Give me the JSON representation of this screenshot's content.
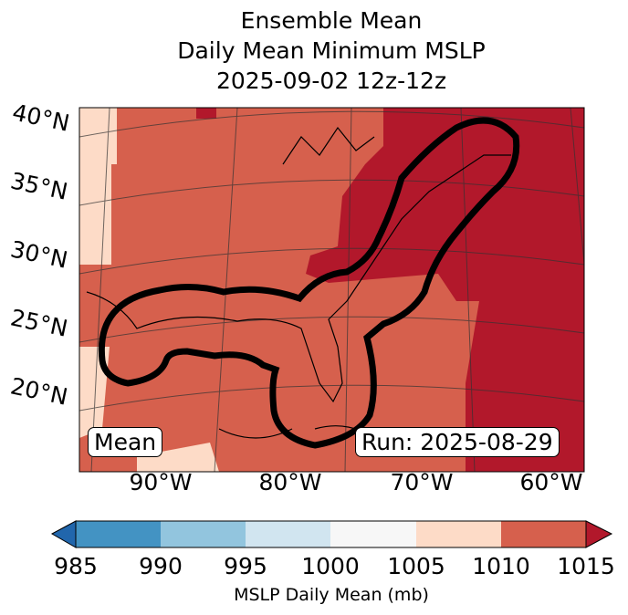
{
  "title": [
    "Ensemble Mean",
    "Daily Mean Minimum MSLP",
    "2025-09-02 12z-12z"
  ],
  "map": {
    "lat_labels": [
      "40°N",
      "35°N",
      "30°N",
      "25°N",
      "20°N"
    ],
    "lon_labels": [
      "90°W",
      "80°W",
      "70°W",
      "60°W"
    ],
    "mean_label": "Mean",
    "run_label": "Run: 2025-08-29",
    "contour_color": "#000000"
  },
  "colorbar": {
    "label": "MSLP Daily Mean (mb)",
    "ticks": [
      "985",
      "990",
      "995",
      "1000",
      "1005",
      "1010",
      "1015"
    ],
    "colors": [
      "#4393c3",
      "#92c5de",
      "#d1e5f0",
      "#f7f7f7",
      "#fddbc7",
      "#d6604d"
    ],
    "under_color": "#2166ac",
    "over_color": "#b2182b"
  }
}
